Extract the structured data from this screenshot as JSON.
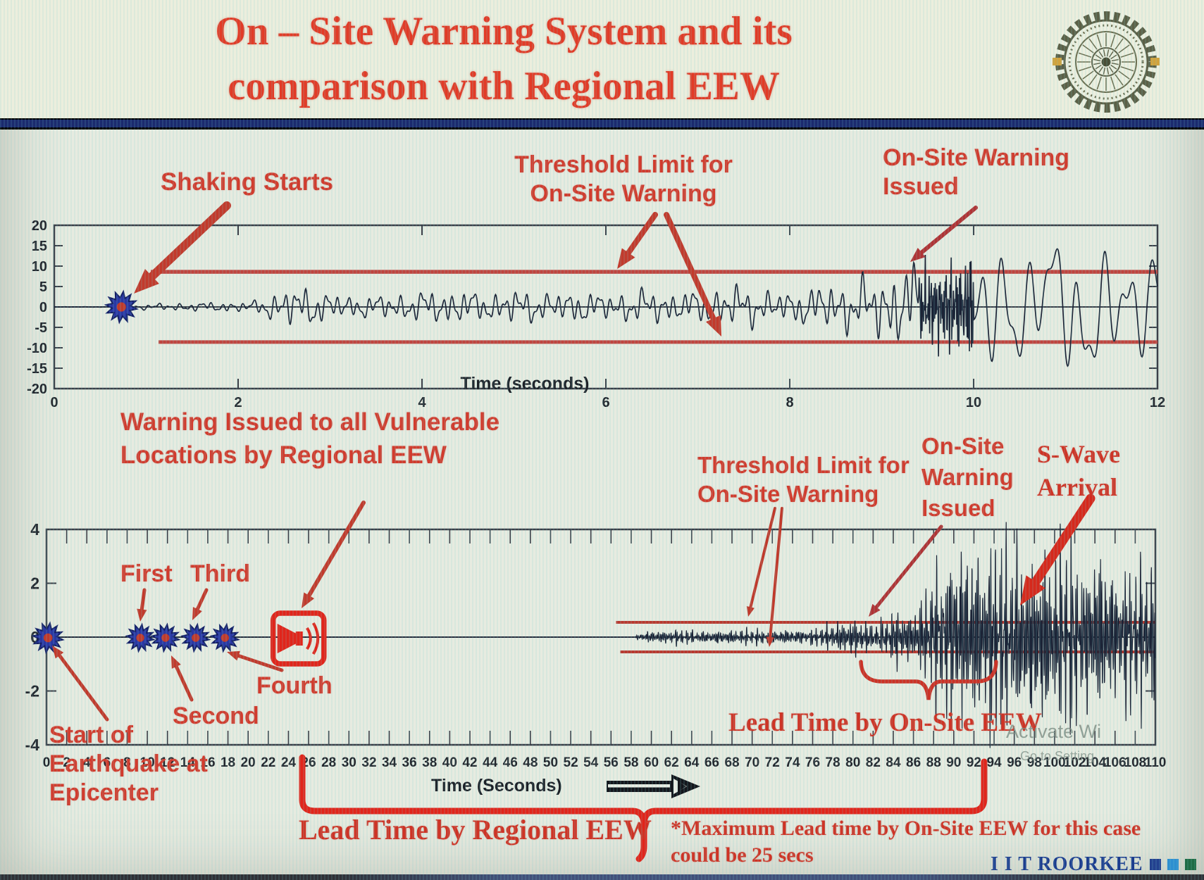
{
  "slide": {
    "title_line1": "On – Site Warning System and its",
    "title_line2": "comparison with Regional EEW",
    "footer_brand": "I I T ROORKEE",
    "watermark_line1": "Activate Wi",
    "watermark_line2": "Go to Setting",
    "icons": {
      "logo": "iit-roorkee-emblem",
      "regional_warning": "loudspeaker-icon",
      "epicenter_marker": "star-burst-icon",
      "time_axis_arrow": "right-arrow-icon"
    },
    "colors": {
      "title_red": "#e23b27",
      "annotation_red": "#d23b2d",
      "arrow_red": "#bf392c",
      "bracket_red": "#e1251b",
      "threshold_red": "#c0453f",
      "waveform_navy": "#1b2336",
      "navy_bar": "#1b2a6e",
      "brand_blue": "#1c3c8e",
      "marker_blue": "#2a37a3",
      "marker_center_red": "#c0392b",
      "brand_squares": [
        "#23418f",
        "#2e8fd0",
        "#1e6b45"
      ]
    }
  },
  "chart_data": [
    {
      "type": "line",
      "name": "on-site-seismogram-12s",
      "xlabel": "Time (seconds)",
      "ylabel": "",
      "xlim": [
        0,
        12
      ],
      "ylim": [
        -20,
        20
      ],
      "x_ticks": [
        0,
        2,
        4,
        6,
        8,
        10,
        12
      ],
      "y_ticks": [
        20,
        15,
        10,
        5,
        0,
        -5,
        -10,
        -15,
        -20
      ],
      "grid": false,
      "threshold": {
        "value": 8.6,
        "start_x": 1.05,
        "label_lines": [
          "Threshold Limit for",
          "On-Site Warning"
        ]
      },
      "annotations": {
        "shaking_starts": {
          "x": 0.73,
          "label": "Shaking Starts"
        },
        "warning_issued": {
          "x": 9.3,
          "label_lines": [
            "On-Site Warning",
            "Issued"
          ]
        }
      },
      "waveform_envelope": [
        [
          0,
          0.05
        ],
        [
          0.7,
          0.05
        ],
        [
          0.76,
          0.45
        ],
        [
          0.95,
          0.55
        ],
        [
          1.3,
          0.8
        ],
        [
          1.8,
          1.0
        ],
        [
          2.15,
          1.1
        ],
        [
          2.35,
          2.6
        ],
        [
          2.55,
          4.2
        ],
        [
          2.8,
          4.0
        ],
        [
          3.0,
          2.8
        ],
        [
          3.3,
          2.2
        ],
        [
          3.7,
          2.6
        ],
        [
          4.05,
          3.3
        ],
        [
          4.4,
          3.6
        ],
        [
          4.7,
          2.8
        ],
        [
          5.0,
          3.6
        ],
        [
          5.35,
          2.9
        ],
        [
          5.7,
          3.3
        ],
        [
          6.05,
          2.7
        ],
        [
          6.4,
          3.6
        ],
        [
          6.75,
          3.1
        ],
        [
          7.1,
          3.4
        ],
        [
          7.45,
          4.6
        ],
        [
          7.7,
          3.4
        ],
        [
          8.0,
          3.1
        ],
        [
          8.3,
          4.4
        ],
        [
          8.6,
          5.2
        ],
        [
          8.9,
          6.2
        ],
        [
          9.15,
          7.6
        ],
        [
          9.35,
          9.2
        ],
        [
          9.6,
          8.2
        ],
        [
          9.85,
          11.5
        ],
        [
          10.1,
          14.5
        ],
        [
          10.35,
          16.5
        ],
        [
          10.6,
          12.5
        ],
        [
          10.9,
          14.0
        ],
        [
          11.15,
          17.0
        ],
        [
          11.45,
          13.5
        ],
        [
          11.7,
          15.0
        ],
        [
          11.9,
          11.0
        ],
        [
          12,
          12.5
        ]
      ]
    },
    {
      "type": "line",
      "name": "regional-vs-onsite-seismogram-110s",
      "xlabel": "Time (Seconds)",
      "ylabel": "",
      "xlim": [
        0,
        110
      ],
      "ylim": [
        -4,
        4
      ],
      "x_ticks": [
        0,
        2,
        4,
        6,
        8,
        10,
        12,
        14,
        16,
        18,
        20,
        22,
        24,
        26,
        28,
        30,
        32,
        34,
        36,
        38,
        40,
        42,
        44,
        46,
        48,
        50,
        52,
        54,
        56,
        58,
        60,
        62,
        64,
        66,
        68,
        70,
        72,
        74,
        76,
        78,
        80,
        82,
        84,
        86,
        88,
        90,
        92,
        94,
        96,
        98,
        100,
        102,
        104,
        106,
        108,
        110
      ],
      "y_ticks": [
        4,
        2,
        0,
        -2,
        -4
      ],
      "grid": false,
      "threshold": {
        "value": 0.55,
        "start_x": 56.5,
        "label_lines": [
          "Threshold Limit for",
          "On-Site Warning"
        ]
      },
      "markers": [
        {
          "x": 0.15,
          "label_lines": [
            "Start of",
            "Earthquake at",
            "Epicenter"
          ]
        },
        {
          "x": 9.3,
          "label": "First"
        },
        {
          "x": 11.8,
          "label": "Second"
        },
        {
          "x": 14.8,
          "label": "Third"
        },
        {
          "x": 17.7,
          "label": "Fourth"
        }
      ],
      "regional_warning": {
        "x": 25,
        "label_lines": [
          "Warning Issued to all Vulnerable",
          "Locations by Regional EEW"
        ]
      },
      "annotations": {
        "onsite_warning_issued": {
          "x": 81.5,
          "label_lines": [
            "On-Site",
            "Warning",
            "Issued"
          ]
        },
        "s_wave_arrival": {
          "x": 96,
          "label_lines": [
            "S-Wave",
            "Arrival"
          ]
        },
        "lead_time_onsite": {
          "from": 80.8,
          "to": 94.3,
          "label": "Lead Time by On-Site EEW"
        },
        "lead_time_regional": {
          "from": 25.4,
          "to": 93,
          "label": "Lead Time by Regional EEW"
        },
        "note_lines": [
          "*Maximum Lead time by On-Site EEW for this case",
          "could be 25 secs"
        ]
      },
      "waveform_envelope": [
        [
          0,
          0
        ],
        [
          58.3,
          0
        ],
        [
          58.7,
          0.1
        ],
        [
          60,
          0.16
        ],
        [
          63,
          0.2
        ],
        [
          66,
          0.17
        ],
        [
          69,
          0.22
        ],
        [
          72,
          0.18
        ],
        [
          75,
          0.22
        ],
        [
          77,
          0.28
        ],
        [
          78.5,
          0.42
        ],
        [
          80,
          0.5
        ],
        [
          81.5,
          0.46
        ],
        [
          83,
          0.55
        ],
        [
          84.5,
          0.8
        ],
        [
          85.5,
          0.6
        ],
        [
          86.5,
          0.9
        ],
        [
          87.3,
          1.2
        ],
        [
          88.2,
          2.0
        ],
        [
          89,
          2.6
        ],
        [
          90,
          2.9
        ],
        [
          91,
          2.3
        ],
        [
          92,
          2.6
        ],
        [
          93,
          2.2
        ],
        [
          94,
          2.8
        ],
        [
          95,
          2.4
        ],
        [
          96,
          2.9
        ],
        [
          97,
          2.5
        ],
        [
          98,
          2.2
        ],
        [
          99,
          2.7
        ],
        [
          100,
          2.4
        ],
        [
          101,
          2.8
        ],
        [
          102,
          2.3
        ],
        [
          103,
          2.0
        ],
        [
          104,
          2.5
        ],
        [
          105,
          2.2
        ],
        [
          106,
          1.9
        ],
        [
          107,
          2.3
        ],
        [
          108,
          2.0
        ],
        [
          109,
          1.8
        ],
        [
          110,
          2.1
        ]
      ]
    }
  ]
}
